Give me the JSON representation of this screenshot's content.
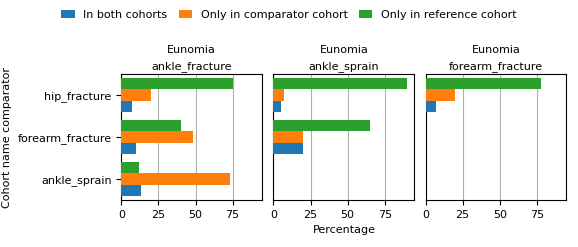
{
  "chart_data": [
    {
      "type": "bar",
      "orientation": "horizontal",
      "title": "Eunomia",
      "subtitle": "ankle_fracture",
      "y_label": "Cohort name comparator",
      "categories": [
        "hip_fracture",
        "forearm_fracture",
        "ankle_sprain"
      ],
      "series": [
        {
          "name": "In both cohorts",
          "values": [
            7,
            10,
            13
          ]
        },
        {
          "name": "Only in comparator cohort",
          "values": [
            20,
            48,
            73
          ]
        },
        {
          "name": "Only in reference cohort",
          "values": [
            75,
            40,
            12
          ]
        }
      ],
      "xlim": [
        0,
        95
      ],
      "xticks": [
        0,
        25,
        50,
        75
      ],
      "grid": true,
      "legend": "upper center"
    },
    {
      "type": "bar",
      "orientation": "horizontal",
      "title": "Eunomia",
      "subtitle": "ankle_sprain",
      "x_label": "Percentage",
      "categories": [
        "hip_fracture",
        "forearm_fracture",
        "ankle_sprain"
      ],
      "series": [
        {
          "name": "In both cohorts",
          "values": [
            5,
            20,
            0
          ]
        },
        {
          "name": "Only in comparator cohort",
          "values": [
            7,
            20,
            0
          ]
        },
        {
          "name": "Only in reference cohort",
          "values": [
            90,
            65,
            0
          ]
        }
      ],
      "xlim": [
        0,
        95
      ],
      "xticks": [
        0,
        25,
        50,
        75
      ],
      "grid": true,
      "tick_labels": "x"
    },
    {
      "type": "bar",
      "orientation": "horizontal",
      "title": "Eunomia",
      "subtitle": "forearm_fracture",
      "categories": [
        "hip_fracture",
        "forearm_fracture",
        "ankle_sprain"
      ],
      "series": [
        {
          "name": "In both cohorts",
          "values": [
            7,
            0,
            0
          ]
        },
        {
          "name": "Only in comparator cohort",
          "values": [
            20,
            0,
            0
          ]
        },
        {
          "name": "Only in reference cohort",
          "values": [
            78,
            0,
            0
          ]
        }
      ],
      "xlim": [
        0,
        95
      ],
      "xticks": [
        0,
        25,
        50,
        75
      ],
      "grid": true,
      "tick_labels": "x"
    }
  ]
}
